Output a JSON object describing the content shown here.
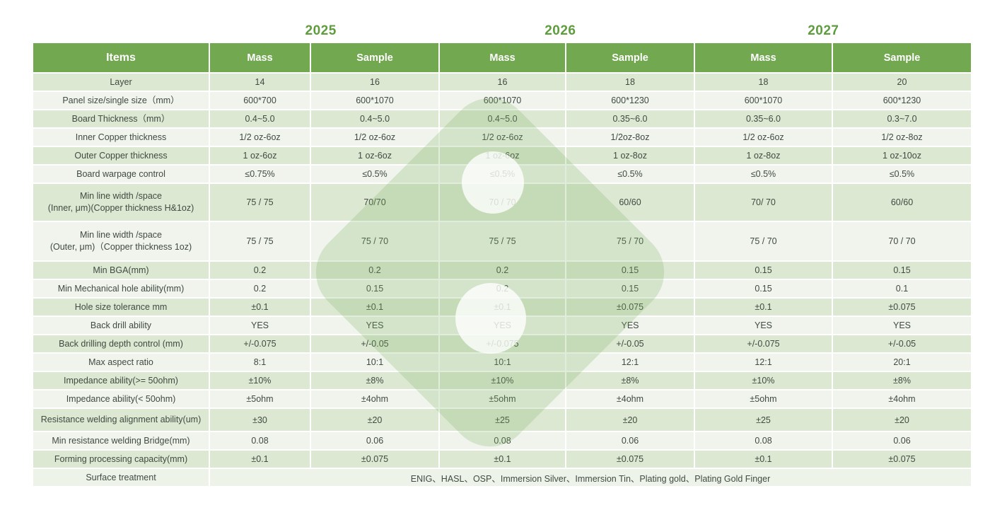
{
  "years": [
    {
      "label": "2025"
    },
    {
      "label": "2026"
    },
    {
      "label": "2027"
    }
  ],
  "header": {
    "items_label": "Items",
    "mass_label": "Mass",
    "sample_label": "Sample"
  },
  "colors": {
    "header_green": "#71a850",
    "year_green": "#5e9c3e",
    "stripe_sage": "#dce8d2",
    "stripe_light": "#f0f4ec",
    "text": "#404b41"
  },
  "rows": [
    {
      "label": "Layer",
      "values": [
        "14",
        "16",
        "16",
        "18",
        "18",
        "20"
      ]
    },
    {
      "label": "Panel size/single size（mm）",
      "values": [
        "600*700",
        "600*1070",
        "600*1070",
        "600*1230",
        "600*1070",
        "600*1230"
      ]
    },
    {
      "label": "Board Thickness（mm）",
      "values": [
        "0.4~5.0",
        "0.4~5.0",
        "0.4~5.0",
        "0.35~6.0",
        "0.35~6.0",
        "0.3~7.0"
      ]
    },
    {
      "label": "Inner Copper thickness",
      "values": [
        "1/2 oz-6oz",
        "1/2 oz-6oz",
        "1/2 oz-6oz",
        "1/2oz-8oz",
        "1/2 oz-6oz",
        "1/2 oz-8oz"
      ]
    },
    {
      "label": "Outer Copper thickness",
      "values": [
        "1 oz-6oz",
        "1 oz-6oz",
        "1 oz-6oz",
        "1 oz-8oz",
        "1 oz-8oz",
        "1 oz-10oz"
      ]
    },
    {
      "label": "Board warpage control",
      "values": [
        "≤0.75%",
        "≤0.5%",
        "≤0.5%",
        "≤0.5%",
        "≤0.5%",
        "≤0.5%"
      ]
    },
    {
      "label": "Min line width /space\n(Inner, μm)(Copper thickness H&1oz)",
      "values": [
        "75 / 75",
        "70/70",
        "70 / 70",
        "60/60",
        "70/ 70",
        "60/60"
      ],
      "size": "tall"
    },
    {
      "label": "Min line width /space\n(Outer, μm)（Copper thickness 1oz)",
      "values": [
        "75 / 75",
        "75 / 70",
        "75 / 75",
        "75 / 70",
        "75 / 70",
        "70 / 70"
      ],
      "size": "tall2"
    },
    {
      "label": "Min BGA(mm)",
      "values": [
        "0.2",
        "0.2",
        "0.2",
        "0.15",
        "0.15",
        "0.15"
      ]
    },
    {
      "label": "Min Mechanical hole ability(mm)",
      "values": [
        "0.2",
        "0.15",
        "0.2",
        "0.15",
        "0.15",
        "0.1"
      ]
    },
    {
      "label": "Hole size tolerance  mm",
      "values": [
        "±0.1",
        "±0.1",
        "±0.1",
        "±0.075",
        "±0.1",
        "±0.075"
      ]
    },
    {
      "label": "Back drill ability",
      "values": [
        "YES",
        "YES",
        "YES",
        "YES",
        "YES",
        "YES"
      ]
    },
    {
      "label": "Back drilling depth control (mm)",
      "values": [
        "+/-0.075",
        "+/-0.05",
        "+/-0.075",
        "+/-0.05",
        "+/-0.075",
        "+/-0.05"
      ]
    },
    {
      "label": "Max aspect ratio",
      "values": [
        "8:1",
        "10:1",
        "10:1",
        "12:1",
        "12:1",
        "20:1"
      ]
    },
    {
      "label": "Impedance ability(>= 50ohm)",
      "values": [
        "±10%",
        "±8%",
        "±10%",
        "±8%",
        "±10%",
        "±8%"
      ]
    },
    {
      "label": "Impedance ability(< 50ohm)",
      "values": [
        "±5ohm",
        "±4ohm",
        "±5ohm",
        "±4ohm",
        "±5ohm",
        "±4ohm"
      ]
    },
    {
      "label": "Resistance welding alignment ability(um)",
      "values": [
        "±30",
        "±20",
        "±25",
        "±20",
        "±25",
        "±20"
      ],
      "size": "mid"
    },
    {
      "label": "Min resistance welding Bridge(mm)",
      "values": [
        "0.08",
        "0.06",
        "0.08",
        "0.06",
        "0.08",
        "0.06"
      ]
    },
    {
      "label": "Forming processing capacity(mm)",
      "values": [
        "±0.1",
        "±0.075",
        "±0.1",
        "±0.075",
        "±0.1",
        "±0.075"
      ]
    }
  ],
  "surface_row": {
    "label": "Surface treatment",
    "value": "ENIG、HASL、OSP、Immersion Silver、Immersion Tin、Plating gold、Plating Gold Finger"
  }
}
